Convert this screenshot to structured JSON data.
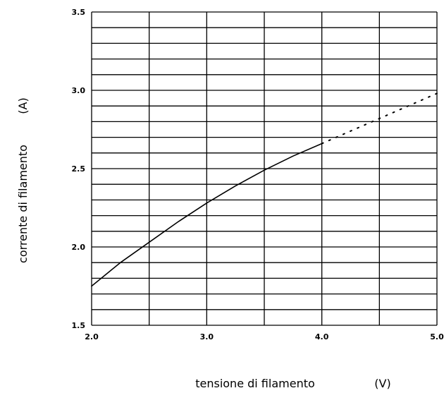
{
  "chart_data": {
    "type": "line",
    "xlabel": "tensione di filamento",
    "xunit": "(V)",
    "ylabel": "corrente di filamento",
    "yunit": "(A)",
    "xlim": [
      2.0,
      5.0
    ],
    "ylim": [
      1.5,
      3.5
    ],
    "grid": true,
    "x_ticks": [
      "2.0",
      "3.0",
      "4.0",
      "5.0"
    ],
    "y_ticks": [
      "1.5",
      "2.0",
      "2.5",
      "3.0",
      "3.5"
    ],
    "series": [
      {
        "style": "solid",
        "x": [
          2.0,
          2.25,
          2.5,
          2.75,
          3.0,
          3.25,
          3.5,
          3.75,
          4.0
        ],
        "y": [
          1.75,
          1.9,
          2.03,
          2.16,
          2.28,
          2.39,
          2.49,
          2.58,
          2.66
        ]
      },
      {
        "style": "dotted",
        "x": [
          4.0,
          4.25,
          4.5,
          4.75,
          5.0
        ],
        "y": [
          2.66,
          2.74,
          2.82,
          2.9,
          2.98
        ]
      }
    ]
  }
}
